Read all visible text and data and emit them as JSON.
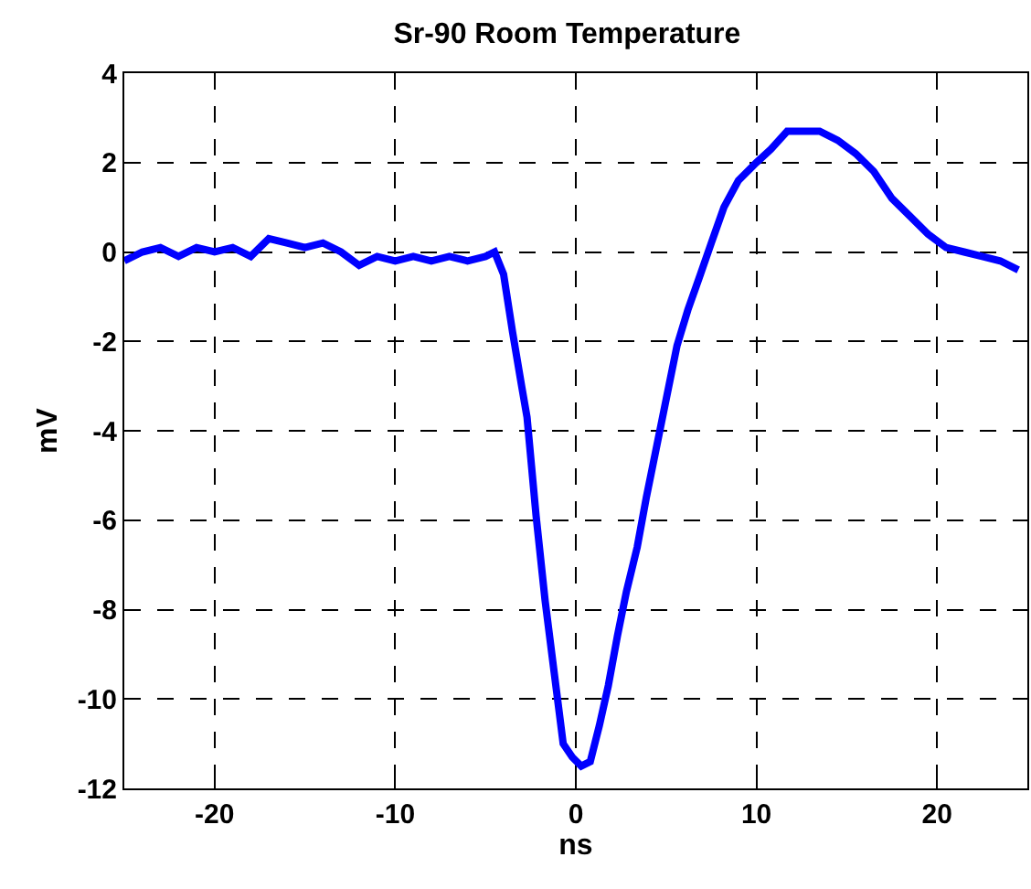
{
  "chart_data": {
    "type": "line",
    "title": "Sr-90 Room Temperature",
    "xlabel": "ns",
    "ylabel": "mV",
    "xlim": [
      -25,
      25
    ],
    "ylim": [
      -12,
      4
    ],
    "xticks": [
      -20,
      -10,
      0,
      10,
      20
    ],
    "yticks": [
      -12,
      -10,
      -8,
      -6,
      -4,
      -2,
      0,
      2,
      4
    ],
    "grid": true,
    "marker": "none",
    "line_style": "solid",
    "series": [
      {
        "color": "#0000ff",
        "x": [
          -25,
          -24,
          -23,
          -22,
          -21,
          -20,
          -19,
          -18,
          -17,
          -16,
          -15,
          -14,
          -13,
          -12,
          -11,
          -10,
          -9,
          -8,
          -7,
          -6,
          -5,
          -4.5,
          -4,
          -3.5,
          -3,
          -2.7,
          -2.2,
          -1.7,
          -1.2,
          -0.7,
          -0.2,
          0.3,
          0.8,
          1.3,
          1.8,
          2.3,
          2.8,
          3.4,
          3.9,
          4.4,
          5,
          5.6,
          6.2,
          6.9,
          7.5,
          8.2,
          9,
          10,
          10.8,
          11.7,
          12.5,
          13.5,
          14.5,
          15.5,
          16.5,
          17.5,
          18.5,
          19.5,
          20.5,
          21.5,
          22.5,
          23.5,
          24.5
        ],
        "values": [
          -0.2,
          0.0,
          0.1,
          -0.1,
          0.1,
          0.0,
          0.1,
          -0.1,
          0.3,
          0.2,
          0.1,
          0.2,
          0.0,
          -0.3,
          -0.1,
          -0.2,
          -0.1,
          -0.2,
          -0.1,
          -0.2,
          -0.1,
          0.0,
          -0.5,
          -1.8,
          -3.0,
          -3.7,
          -5.9,
          -7.8,
          -9.4,
          -11.0,
          -11.3,
          -11.5,
          -11.4,
          -10.6,
          -9.7,
          -8.6,
          -7.6,
          -6.6,
          -5.5,
          -4.5,
          -3.3,
          -2.1,
          -1.3,
          -0.5,
          0.2,
          1.0,
          1.6,
          2.0,
          2.3,
          2.7,
          2.7,
          2.7,
          2.5,
          2.2,
          1.8,
          1.2,
          0.8,
          0.4,
          0.1,
          0.0,
          -0.1,
          -0.2,
          -0.4
        ]
      }
    ]
  }
}
